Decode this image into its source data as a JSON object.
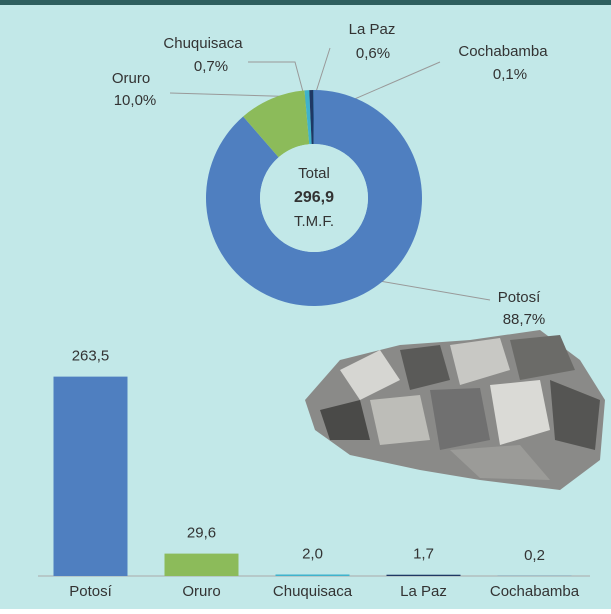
{
  "chart_data": [
    {
      "type": "donut",
      "categories": [
        "Potosí",
        "Oruro",
        "Chuquisaca",
        "La Paz",
        "Cochabamba"
      ],
      "values": [
        88.7,
        10.0,
        0.7,
        0.6,
        0.1
      ],
      "value_labels": [
        "88,7%",
        "10,0%",
        "0,7%",
        "0,6%",
        "0,1%"
      ],
      "colors": [
        "#4f7fc0",
        "#8cbb5a",
        "#3fb3cc",
        "#1f3864",
        "#2e75b6"
      ],
      "total_title": "Total",
      "total": {
        "value": 296.9,
        "label": "296,9"
      },
      "total_unit": "T.M.F."
    },
    {
      "type": "bar",
      "categories": [
        "Potosí",
        "Oruro",
        "Chuquisaca",
        "La Paz",
        "Cochabamba"
      ],
      "values": [
        263.5,
        29.6,
        2.0,
        1.7,
        0.2
      ],
      "value_labels": [
        "263,5",
        "29,6",
        "2,0",
        "1,7",
        "0,2"
      ],
      "colors": [
        "#4f7fc0",
        "#8cbb5a",
        "#3fb3cc",
        "#1f3864",
        "#2e75b6"
      ],
      "ylim": [
        0,
        300
      ]
    }
  ]
}
